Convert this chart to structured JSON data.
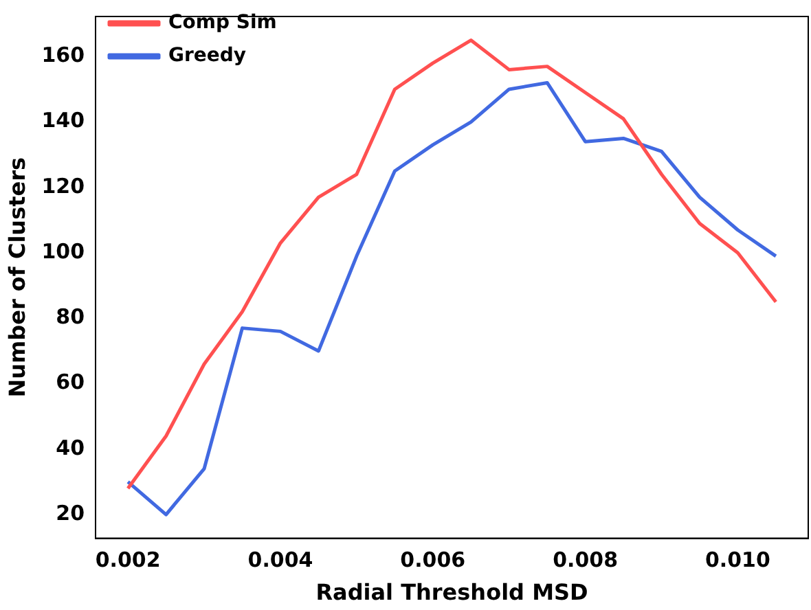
{
  "chart_data": {
    "type": "line",
    "xlabel": "Radial Threshold MSD",
    "ylabel": "Number of Clusters",
    "x": [
      0.002,
      0.0025,
      0.003,
      0.0035,
      0.004,
      0.0045,
      0.005,
      0.0055,
      0.006,
      0.0065,
      0.007,
      0.0075,
      0.008,
      0.0085,
      0.009,
      0.0095,
      0.01,
      0.0105
    ],
    "series": [
      {
        "name": "Comp Sim",
        "color": "#ff5050",
        "values": [
          28,
          44,
          66,
          82,
          103,
          117,
          124,
          150,
          158,
          165,
          156,
          157,
          149,
          141,
          124,
          109,
          100,
          85
        ]
      },
      {
        "name": "Greedy",
        "color": "#4169e1",
        "values": [
          30,
          20,
          34,
          77,
          76,
          70,
          99,
          125,
          133,
          140,
          150,
          152,
          134,
          135,
          131,
          117,
          107,
          99
        ]
      }
    ],
    "xlim": [
      0.001575,
      0.010925
    ],
    "xticks": [
      {
        "value": 0.002,
        "label": "0.002"
      },
      {
        "value": 0.004,
        "label": "0.004"
      },
      {
        "value": 0.006,
        "label": "0.006"
      },
      {
        "value": 0.008,
        "label": "0.008"
      },
      {
        "value": 0.01,
        "label": "0.010"
      }
    ],
    "ylim": [
      12.75,
      172.25
    ],
    "yticks": [
      20,
      40,
      60,
      80,
      100,
      120,
      140,
      160
    ],
    "grid": false,
    "legend": "top left",
    "marker": "none",
    "line_style": "solid"
  }
}
